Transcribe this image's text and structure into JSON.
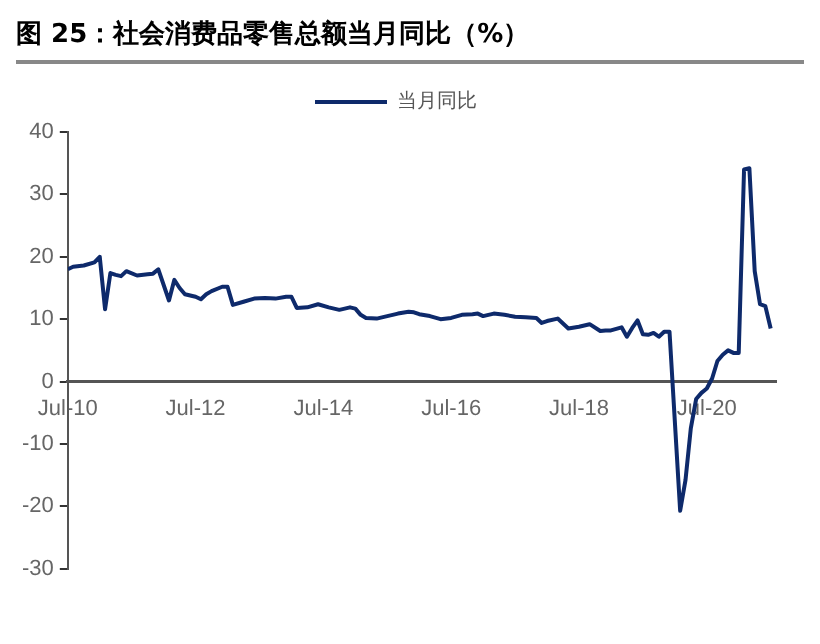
{
  "chart_data": {
    "type": "line",
    "title": "图 25：社会消费品零售总额当月同比（%）",
    "x": [
      "2010-07",
      "2010-08",
      "2010-10",
      "2010-12",
      "2011-01",
      "2011-02",
      "2011-03",
      "2011-04",
      "2011-05",
      "2011-06",
      "2011-08",
      "2011-10",
      "2011-11",
      "2011-12",
      "2012-02",
      "2012-03",
      "2012-04",
      "2012-05",
      "2012-07",
      "2012-08",
      "2012-09",
      "2012-10",
      "2012-12",
      "2013-01",
      "2013-02",
      "2013-04",
      "2013-06",
      "2013-08",
      "2013-10",
      "2013-12",
      "2014-01",
      "2014-02",
      "2014-04",
      "2014-06",
      "2014-08",
      "2014-10",
      "2014-12",
      "2015-01",
      "2015-02",
      "2015-03",
      "2015-05",
      "2015-07",
      "2015-09",
      "2015-11",
      "2015-12",
      "2016-01",
      "2016-03",
      "2016-05",
      "2016-07",
      "2016-09",
      "2016-11",
      "2016-12",
      "2017-01",
      "2017-03",
      "2017-05",
      "2017-07",
      "2017-09",
      "2017-11",
      "2017-12",
      "2018-01",
      "2018-03",
      "2018-05",
      "2018-07",
      "2018-09",
      "2018-11",
      "2018-12",
      "2019-01",
      "2019-03",
      "2019-04",
      "2019-05",
      "2019-06",
      "2019-07",
      "2019-08",
      "2019-09",
      "2019-10",
      "2019-11",
      "2019-12",
      "2020-02",
      "2020-03",
      "2020-04",
      "2020-05",
      "2020-06",
      "2020-07",
      "2020-08",
      "2020-09",
      "2020-10",
      "2020-11",
      "2020-12",
      "2021-01",
      "2021-02",
      "2021-03",
      "2021-04",
      "2021-05",
      "2021-06",
      "2021-07"
    ],
    "series": [
      {
        "name": "当月同比",
        "color": "#0e2a6b",
        "values": [
          18,
          18.4,
          18.6,
          19.1,
          20,
          11.6,
          17.4,
          17.1,
          16.9,
          17.7,
          17,
          17.2,
          17.3,
          18,
          13,
          16.3,
          15,
          14,
          13.6,
          13.2,
          14,
          14.5,
          15.2,
          15.2,
          12.3,
          12.8,
          13.3,
          13.4,
          13.3,
          13.6,
          13.6,
          11.8,
          11.9,
          12.4,
          11.9,
          11.5,
          11.9,
          11.7,
          10.7,
          10.2,
          10.1,
          10.5,
          10.9,
          11.2,
          11.1,
          10.8,
          10.5,
          10,
          10.2,
          10.7,
          10.8,
          10.9,
          10.5,
          10.9,
          10.7,
          10.4,
          10.3,
          10.2,
          9.4,
          9.7,
          10.1,
          8.5,
          8.8,
          9.2,
          8.1,
          8.2,
          8.2,
          8.7,
          7.2,
          8.6,
          9.8,
          7.6,
          7.5,
          7.8,
          7.2,
          8,
          8,
          -20.7,
          -15.8,
          -7.5,
          -2.8,
          -1.8,
          -1.1,
          0.5,
          3.3,
          4.3,
          5,
          4.6,
          4.6,
          34,
          34.2,
          17.7,
          12.4,
          12.1,
          8.5
        ]
      }
    ],
    "xlim": [
      "2010-07",
      "2021-08"
    ],
    "xticks": [
      {
        "value": "2010-07",
        "label": "Jul-10"
      },
      {
        "value": "2012-07",
        "label": "Jul-12"
      },
      {
        "value": "2014-07",
        "label": "Jul-14"
      },
      {
        "value": "2016-07",
        "label": "Jul-16"
      },
      {
        "value": "2018-07",
        "label": "Jul-18"
      },
      {
        "value": "2020-07",
        "label": "Jul-20"
      }
    ],
    "ylim": [
      -30,
      40
    ],
    "yticks": [
      -30,
      -20,
      -10,
      0,
      10,
      20,
      30,
      40
    ],
    "legend": "top",
    "grid": false,
    "marker": "none",
    "line_style": "solid"
  }
}
